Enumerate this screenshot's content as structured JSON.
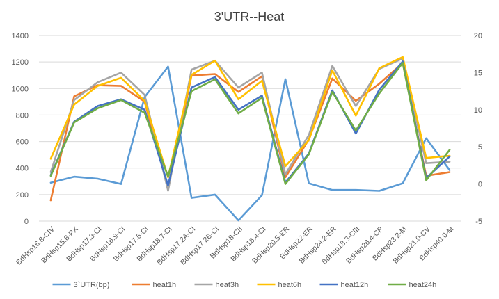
{
  "chart_data": {
    "type": "line",
    "title": "3'UTR--Heat",
    "categories": [
      "BdHsp16.8-CIV",
      "BdHsp15.8-PX",
      "BdHsp17.3-CI",
      "BdHsp16.9-CI",
      "BdHsp17.6-CI",
      "BdHsp18.7-CI",
      "BdHsp17.2A-CI",
      "BdHsp17.2B-CI",
      "BdHsp18-CII",
      "BdHsp16.4-CI",
      "BdHsp20.5-ER",
      "BdHsp22-ER",
      "BdHsp24.2-ER",
      "BdHsp18.3-CIII",
      "BdHsp26.4-CP",
      "BdHsp23.2-M",
      "BdHsp21.0-CV",
      "BdHsp40.0-M"
    ],
    "y_left": {
      "min": 0,
      "max": 1400,
      "step": 200,
      "ticks": [
        "0",
        "200",
        "400",
        "600",
        "800",
        "1000",
        "1200",
        "1400"
      ]
    },
    "y_right": {
      "min": -5,
      "max": 20,
      "step": 5,
      "ticks": [
        "-5",
        "0",
        "5",
        "10",
        "15",
        "20"
      ]
    },
    "grid": true,
    "legend_position": "bottom",
    "series": [
      {
        "name": "3`UTR(bp)",
        "axis": "left",
        "color": "#5b9bd5",
        "values": [
          290,
          335,
          320,
          280,
          935,
          1165,
          175,
          200,
          5,
          195,
          1070,
          285,
          235,
          235,
          228,
          285,
          625,
          385
        ]
      },
      {
        "name": "heat1h",
        "axis": "right",
        "color": "#ed7d31",
        "values": [
          -2.2,
          11.8,
          13.3,
          13.2,
          11.1,
          -0.5,
          14.6,
          14.8,
          12.4,
          14.5,
          0.9,
          6.0,
          14.2,
          11.2,
          13.5,
          16.3,
          1.1,
          1.6
        ]
      },
      {
        "name": "heat3h",
        "axis": "right",
        "color": "#a5a5a5",
        "values": [
          1.6,
          11.3,
          13.7,
          15.0,
          12.0,
          -0.9,
          15.4,
          16.6,
          13.0,
          15.0,
          1.3,
          6.6,
          15.9,
          10.5,
          15.5,
          16.9,
          2.8,
          3.0
        ]
      },
      {
        "name": "heat6h",
        "axis": "right",
        "color": "#ffc000",
        "values": [
          3.4,
          10.7,
          13.2,
          14.3,
          11.2,
          0.9,
          14.7,
          16.6,
          11.4,
          13.9,
          2.4,
          5.9,
          15.3,
          9.2,
          15.6,
          17.1,
          3.5,
          3.8
        ]
      },
      {
        "name": "heat12h",
        "axis": "right",
        "color": "#4472c4",
        "values": [
          1.2,
          8.4,
          10.5,
          11.4,
          10.0,
          -0.2,
          13.0,
          14.4,
          10.0,
          11.9,
          0.2,
          4.1,
          12.6,
          6.8,
          12.7,
          16.5,
          0.8,
          3.7
        ]
      },
      {
        "name": "heat24h",
        "axis": "right",
        "color": "#70ad47",
        "values": [
          1.1,
          8.3,
          10.2,
          11.3,
          9.6,
          1.0,
          12.5,
          14.1,
          9.5,
          11.6,
          0.0,
          4.0,
          12.4,
          7.2,
          12.2,
          16.3,
          0.5,
          4.6
        ]
      }
    ]
  }
}
